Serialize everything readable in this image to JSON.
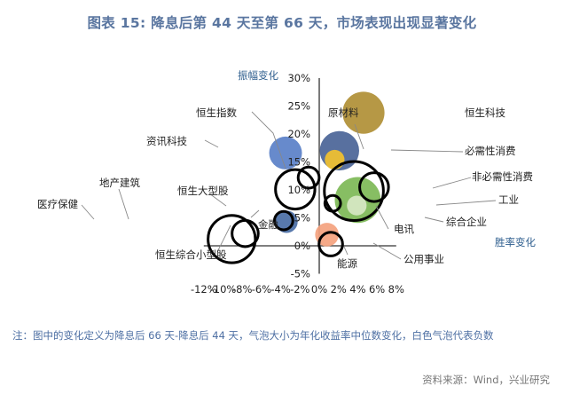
{
  "title": "图表 15: 降息后第 44 天至第 66 天，市场表现出现显著变化",
  "note": "注：图中的变化定义为降息后 66 天-降息后 44 天，气泡大小为年化收益率中位数变化，白色气泡代表负数",
  "source": "资料来源：Wind，兴业研究",
  "chart_data": {
    "type": "scatter",
    "xlabel": "胜率变化",
    "ylabel": "振幅变化",
    "xlim": [
      -0.12,
      0.08
    ],
    "ylim": [
      -0.05,
      0.3
    ],
    "x_ticks": [
      "-12%",
      "-10%",
      "-8%",
      "-6%",
      "-4%",
      "-2%",
      "0%",
      "2%",
      "4%",
      "6%",
      "8%"
    ],
    "y_ticks": [
      "-5%",
      "0%",
      "5%",
      "10%",
      "15%",
      "20%",
      "25%",
      "30%"
    ],
    "points": [
      {
        "label": "恒生科技",
        "x": 0.046,
        "y": 0.238,
        "size": 3.2,
        "negative": false,
        "color": "#B08F35"
      },
      {
        "label": "原材料",
        "x": 0.021,
        "y": 0.17,
        "size": 3.0,
        "negative": false,
        "color": "#4A6497"
      },
      {
        "label": "资讯科技",
        "x": -0.035,
        "y": 0.166,
        "size": 2.5,
        "negative": false,
        "color": "#5A80C8"
      },
      {
        "label": "必需性消费",
        "x": 0.016,
        "y": 0.154,
        "size": 1.5,
        "negative": false,
        "color": "#F2C12E"
      },
      {
        "label": "恒生指数",
        "x": -0.011,
        "y": 0.122,
        "size": 1.6,
        "negative": true,
        "color": "#ffffff"
      },
      {
        "label": "非必需性消费",
        "x": 0.057,
        "y": 0.105,
        "size": 2.2,
        "negative": true,
        "color": "#ffffff"
      },
      {
        "label": "恒生大型股",
        "x": -0.025,
        "y": 0.101,
        "size": 3.0,
        "negative": true,
        "color": "#ffffff"
      },
      {
        "label": "金融",
        "x": 0.036,
        "y": 0.098,
        "size": 4.5,
        "negative": true,
        "color": "#ffffff"
      },
      {
        "label": "工业",
        "x": 0.04,
        "y": 0.082,
        "size": 3.5,
        "negative": false,
        "color": "#7DB956"
      },
      {
        "label": "综合企业",
        "x": 0.039,
        "y": 0.072,
        "size": 1.5,
        "negative": false,
        "color": "#D7E8C4"
      },
      {
        "label": "电讯",
        "x": 0.014,
        "y": 0.076,
        "size": 1.2,
        "negative": true,
        "color": "#ffffff"
      },
      {
        "label": "电讯-点",
        "x": 0.022,
        "y": 0.074,
        "size": 0.4,
        "negative": false,
        "color": "#7DB956"
      },
      {
        "label": "恒生综合小型股",
        "x": -0.034,
        "y": 0.043,
        "size": 1.7,
        "negative": false,
        "color": "#4A6EA5"
      },
      {
        "label": "恒生综合中型股",
        "x": -0.037,
        "y": 0.045,
        "size": 1.4,
        "negative": true,
        "color": "#ffffff"
      },
      {
        "label": "地产建筑",
        "x": -0.077,
        "y": 0.022,
        "size": 2.0,
        "negative": true,
        "color": "#ffffff"
      },
      {
        "label": "医疗保健",
        "x": -0.091,
        "y": 0.012,
        "size": 3.6,
        "negative": true,
        "color": "#ffffff"
      },
      {
        "label": "能源",
        "x": 0.008,
        "y": 0.02,
        "size": 1.8,
        "negative": false,
        "color": "#F4A27E"
      },
      {
        "label": "公用事业",
        "x": 0.012,
        "y": 0.003,
        "size": 1.8,
        "negative": true,
        "color": "#ffffff"
      }
    ],
    "labels": [
      {
        "text": "恒生科技"
      },
      {
        "text": "原材料"
      },
      {
        "text": "资讯科技"
      },
      {
        "text": "必需性消费"
      },
      {
        "text": "恒生指数"
      },
      {
        "text": "非必需性消费"
      },
      {
        "text": "恒生大型股"
      },
      {
        "text": "金融"
      },
      {
        "text": "工业"
      },
      {
        "text": "综合企业"
      },
      {
        "text": "电讯"
      },
      {
        "text": "恒生综合小型股"
      },
      {
        "text": "地产建筑"
      },
      {
        "text": "医疗保健"
      },
      {
        "text": "能源"
      },
      {
        "text": "公用事业"
      }
    ]
  }
}
